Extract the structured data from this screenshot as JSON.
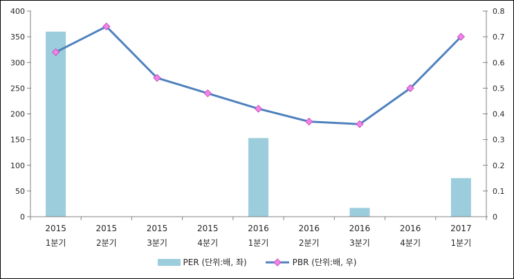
{
  "chart_data": {
    "type": "combo-bar-line",
    "categories": [
      "2015 1분기",
      "2015 2분기",
      "2015 3분기",
      "2015 4분기",
      "2016 1분기",
      "2016 2분기",
      "2016 3분기",
      "2016 4분기",
      "2017 1분기"
    ],
    "series": [
      {
        "name": "PER (단위:배, 좌)",
        "type": "bar",
        "axis": "left",
        "values": [
          360,
          null,
          null,
          null,
          153,
          null,
          17,
          null,
          75
        ]
      },
      {
        "name": "PBR (단위:배, 우)",
        "type": "line",
        "axis": "right",
        "values": [
          0.64,
          0.74,
          0.54,
          0.48,
          0.42,
          0.37,
          0.36,
          0.5,
          0.7
        ]
      }
    ],
    "left_axis": {
      "min": 0,
      "max": 400,
      "tick_values": [
        0,
        50,
        100,
        150,
        200,
        250,
        300,
        350,
        400
      ],
      "tick_labels": [
        "0",
        "50",
        "100",
        "150",
        "200",
        "250",
        "300",
        "350",
        "400"
      ]
    },
    "right_axis": {
      "min": 0,
      "max": 0.8,
      "tick_values": [
        0,
        0.1,
        0.2,
        0.3,
        0.4,
        0.5,
        0.6,
        0.7,
        0.8
      ],
      "tick_labels": [
        "0",
        "0.1",
        "0.2",
        "0.3",
        "0.4",
        "0.5",
        "0.6",
        "0.7",
        "0.8"
      ]
    },
    "title": "",
    "grid": false,
    "legend_position": "bottom"
  },
  "colors": {
    "bar_fill": "#9BCDDC",
    "line": "#4F81BD",
    "marker_fill": "#F283EC",
    "marker_stroke": "#C455B9",
    "axis_line": "#808080",
    "text": "#262626",
    "background": "#FFFFFF",
    "frame_border": "#000000"
  }
}
